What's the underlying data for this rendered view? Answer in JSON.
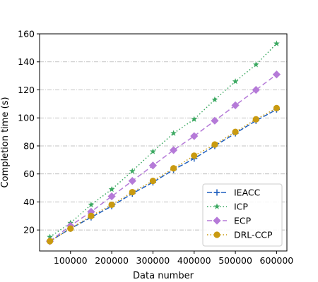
{
  "chart_data": {
    "type": "line",
    "title": "",
    "xlabel": "Data number",
    "ylabel": "Completion time (s)",
    "xlim": [
      25000,
      625000
    ],
    "ylim": [
      5,
      160
    ],
    "xticks": [
      100000,
      200000,
      300000,
      400000,
      500000,
      600000
    ],
    "yticks": [
      20,
      40,
      60,
      80,
      100,
      120,
      140,
      160
    ],
    "grid": "horizontal dash-dot",
    "legend_position": "lower-right",
    "x": [
      50000,
      100000,
      150000,
      200000,
      250000,
      300000,
      350000,
      400000,
      450000,
      500000,
      550000,
      600000
    ],
    "series": [
      {
        "name": "IEACC",
        "values": [
          12,
          21,
          29,
          37,
          46,
          54,
          63,
          71,
          80,
          89,
          98,
          106
        ],
        "color": "#1f5fbf",
        "dash": "7,3",
        "marker": "plus"
      },
      {
        "name": "ICP",
        "values": [
          15,
          25,
          38,
          49,
          62,
          76,
          89,
          99,
          113,
          126,
          138,
          153
        ],
        "color": "#3aa860",
        "dash": "1.5,3",
        "marker": "star"
      },
      {
        "name": "ECP",
        "values": [
          12,
          23,
          33,
          44,
          55,
          66,
          77,
          87,
          98,
          109,
          120,
          131
        ],
        "color": "#b57ad8",
        "dash": "7,4",
        "marker": "diamond"
      },
      {
        "name": "DRL-CCP",
        "values": [
          12,
          21,
          30,
          38,
          47,
          55,
          64,
          73,
          81,
          90,
          99,
          107
        ],
        "color": "#c99a10",
        "dash": "1.5,3",
        "marker": "circle"
      }
    ]
  }
}
